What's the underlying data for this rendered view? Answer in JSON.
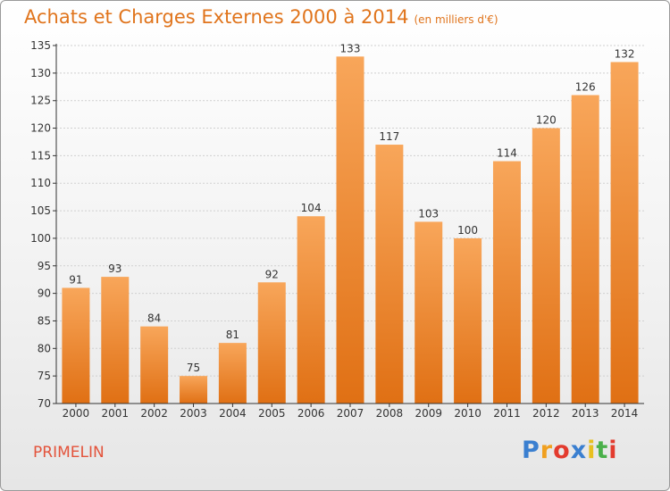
{
  "header": {
    "title": "Achats et Charges Externes 2000 à 2014",
    "subtitle": "(en milliers d'€)"
  },
  "footer": {
    "commune": "PRIMELIN",
    "logo_text": "Proxiti",
    "logo_colors": [
      "#3a7fd0",
      "#f0a020",
      "#e33b2e",
      "#3a7fd0",
      "#e8c020",
      "#4ab04a",
      "#e33b2e"
    ]
  },
  "colors": {
    "bar_light": "#f8a65a",
    "bar_dark": "#e07014",
    "axis": "#333333",
    "grid": "#d0d0d0"
  },
  "chart_data": {
    "type": "bar",
    "title": "Achats et Charges Externes 2000 à 2014",
    "subtitle": "(en milliers d'€)",
    "categories": [
      "2000",
      "2001",
      "2002",
      "2003",
      "2004",
      "2005",
      "2006",
      "2007",
      "2008",
      "2009",
      "2010",
      "2011",
      "2012",
      "2013",
      "2014"
    ],
    "values": [
      91,
      93,
      84,
      75,
      81,
      92,
      104,
      133,
      117,
      103,
      100,
      114,
      120,
      126,
      132
    ],
    "ylim": [
      70,
      135
    ],
    "yticks": [
      70,
      75,
      80,
      85,
      90,
      95,
      100,
      105,
      110,
      115,
      120,
      125,
      130,
      135
    ],
    "grid": "horizontal dotted",
    "data_labels": true
  }
}
